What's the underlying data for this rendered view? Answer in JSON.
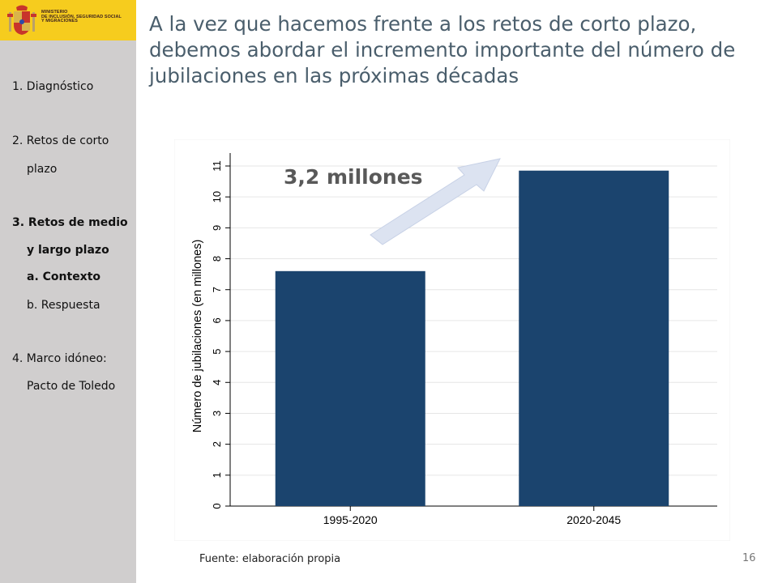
{
  "logo": {
    "lines": [
      "MINISTERIO",
      "DE INCLUSIÓN, SEGURIDAD SOCIAL",
      "Y MIGRACIONES"
    ]
  },
  "title": "A la vez que hacemos frente a los retos de corto plazo, debemos abordar el incremento importante del número de jubilaciones en las próximas décadas",
  "nav": {
    "item1": "1. Diagnóstico",
    "item2_line1": "2. Retos de corto",
    "item2_line2": "plazo",
    "item3_line1": "3. Retos de medio",
    "item3_line2": "y largo plazo",
    "item3a": "a. Contexto",
    "item3b": "b. Respuesta",
    "item4_line1": "4. Marco idóneo:",
    "item4_line2": "Pacto de Toledo"
  },
  "footer": {
    "source": "Fuente: elaboración propia",
    "page_number": "16"
  },
  "colors": {
    "bar": "#1b446e",
    "sidebar": "#d0cece",
    "logo_band": "#f6cc1e",
    "arrow": "#dce3f1",
    "annotation": "#595959"
  },
  "chart_data": {
    "type": "bar",
    "categories": [
      "1995-2020",
      "2020-2045"
    ],
    "values": [
      7.6,
      10.85
    ],
    "ylabel": "Número de jubilaciones (en millones)",
    "xlabel": "",
    "ylim": [
      0,
      11
    ],
    "yticks": [
      0,
      1,
      2,
      3,
      4,
      5,
      6,
      7,
      8,
      9,
      10,
      11
    ],
    "grid": true,
    "annotation": "3,2 millones"
  }
}
